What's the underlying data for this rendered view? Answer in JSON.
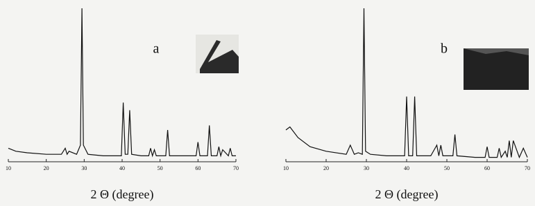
{
  "chart_data": [
    {
      "type": "line",
      "panel_label": "a",
      "xlabel": "2 Θ (degree)",
      "color": "#111111",
      "xlim": [
        10,
        70
      ],
      "xticks": [
        10,
        20,
        30,
        40,
        50,
        60,
        70
      ],
      "ylim": [
        0,
        100
      ],
      "x": [
        10,
        12,
        15,
        20,
        24,
        25,
        25.5,
        26,
        28,
        29,
        29.4,
        29.8,
        31,
        35,
        39.8,
        40.3,
        40.8,
        41.5,
        42,
        42.5,
        45,
        47,
        47.5,
        48,
        48.5,
        49,
        51.5,
        52,
        52.5,
        57,
        59.5,
        60,
        60.5,
        62.5,
        63,
        63.5,
        65,
        65.5,
        66,
        66.5,
        68,
        68.5,
        69,
        70
      ],
      "values": [
        8,
        6,
        5,
        4,
        4,
        8,
        4,
        6,
        4,
        10,
        100,
        10,
        4,
        3,
        3,
        38,
        4,
        4,
        33,
        4,
        3,
        3,
        8,
        3,
        7,
        3,
        3,
        20,
        3,
        3,
        3,
        12,
        3,
        3,
        23,
        3,
        3,
        9,
        3,
        7,
        3,
        8,
        3,
        3
      ]
    },
    {
      "type": "line",
      "panel_label": "b",
      "xlabel": "2 Θ (degree)",
      "color": "#111111",
      "xlim": [
        10,
        70
      ],
      "xticks": [
        10,
        20,
        30,
        40,
        50,
        60,
        70
      ],
      "ylim": [
        0,
        100
      ],
      "x": [
        10,
        11,
        13,
        16,
        20,
        25,
        26,
        27,
        28,
        29,
        29.4,
        29.8,
        31,
        35,
        39.5,
        40,
        40.5,
        41.5,
        42,
        42.5,
        46,
        47.5,
        48,
        48.5,
        49,
        51.5,
        52,
        52.5,
        57,
        59.5,
        60,
        60.5,
        62.5,
        63,
        63.5,
        64.5,
        65,
        65.5,
        66,
        66.5,
        68,
        69,
        70
      ],
      "values": [
        20,
        22,
        15,
        9,
        6,
        4,
        10,
        4,
        5,
        4,
        100,
        6,
        4,
        3,
        3,
        42,
        3,
        3,
        42,
        3,
        3,
        10,
        3,
        10,
        3,
        3,
        17,
        3,
        2,
        2,
        9,
        2,
        2,
        8,
        2,
        6,
        2,
        13,
        2,
        13,
        2,
        8,
        2
      ]
    }
  ]
}
